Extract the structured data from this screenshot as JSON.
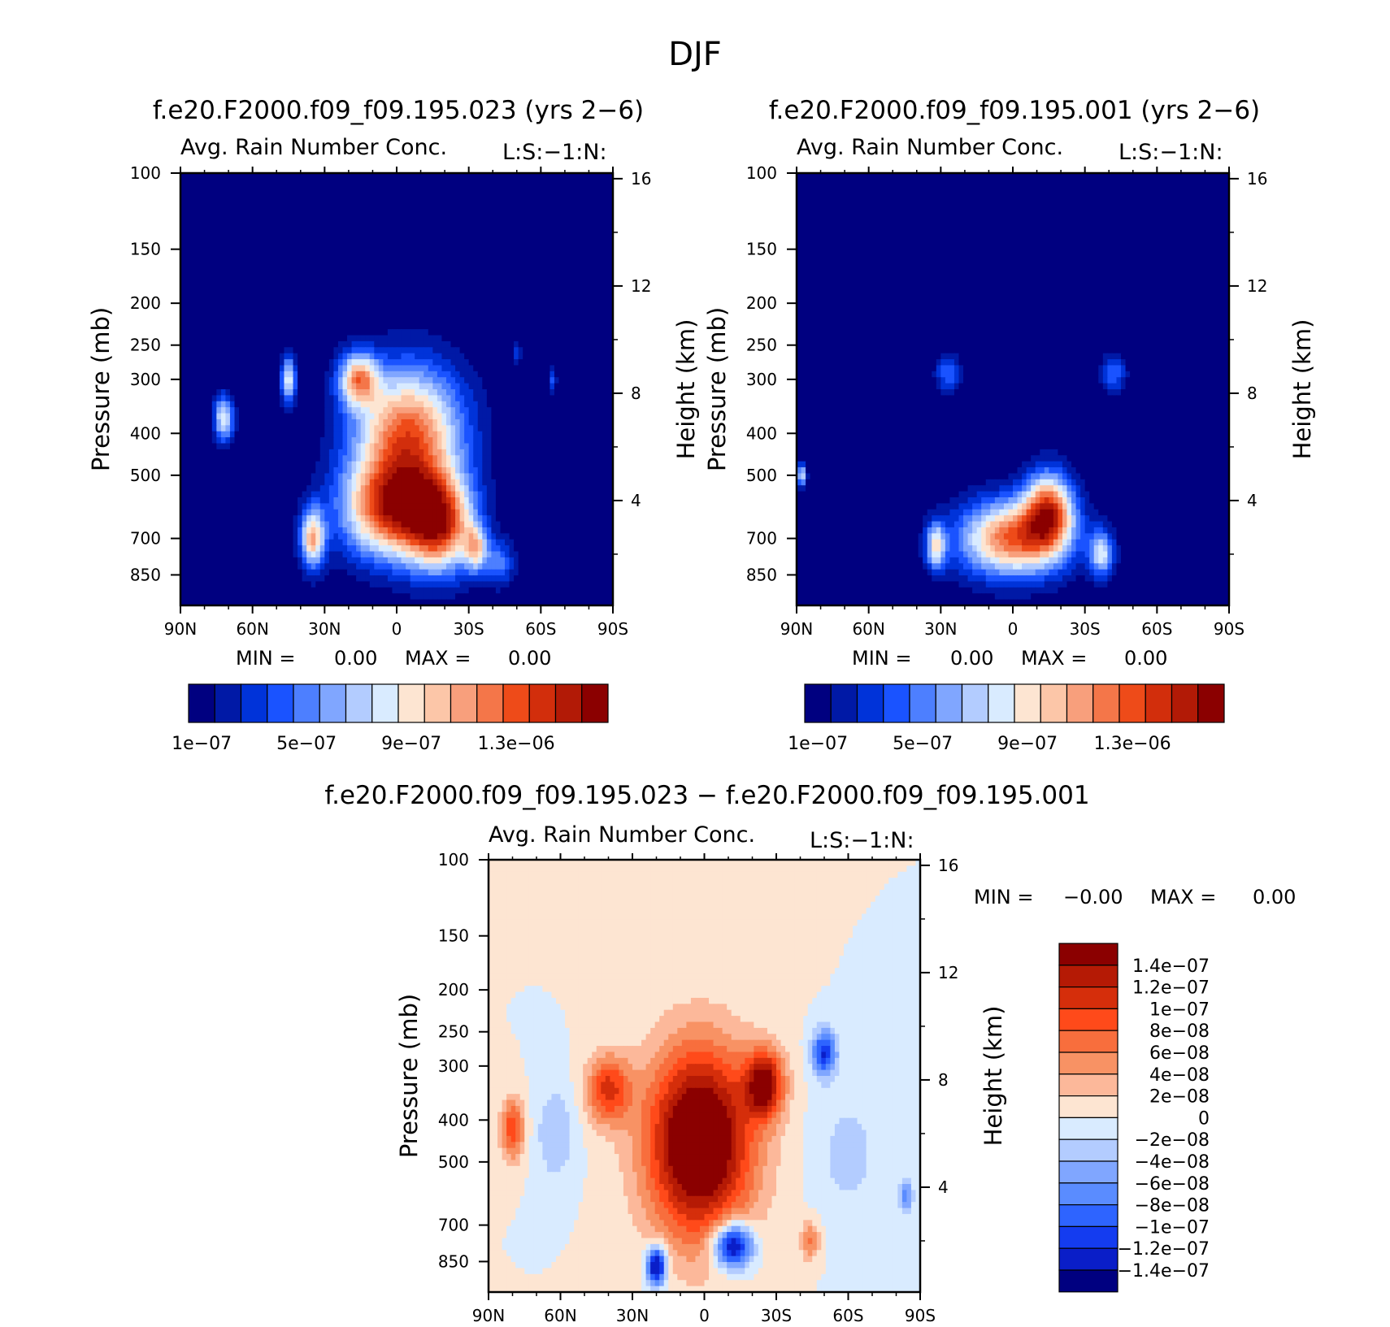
{
  "figure_title": "DJF",
  "colors": {
    "abs_scale": [
      "#000080",
      "#0019a6",
      "#0033d9",
      "#1a53ff",
      "#4d7fff",
      "#80a6ff",
      "#b3ccff",
      "#d9ebff",
      "#fde5d2",
      "#fcc6a8",
      "#f89f7c",
      "#f47649",
      "#ee4b19",
      "#d22e0c",
      "#b21a06",
      "#8b0000"
    ],
    "diff_scale": [
      "#8b0000",
      "#b51a05",
      "#d52e0b",
      "#ff4a1a",
      "#f86e3d",
      "#f89264",
      "#fcb89a",
      "#fde5d2",
      "#d9ebff",
      "#b3ccff",
      "#80a6ff",
      "#5a8cff",
      "#2e64ff",
      "#143cf0",
      "#0a1ec8",
      "#000080"
    ],
    "frame": "#000000"
  },
  "panels": [
    {
      "title": "f.e20.F2000.f09_f09.195.023 (yrs 2−6)",
      "subtitle": "Avg. Rain Number Conc.",
      "tag": "L:S:−1:N:",
      "min_label": "MIN =",
      "min_value": "0.00",
      "max_label": "MAX =",
      "max_value": "0.00"
    },
    {
      "title": "f.e20.F2000.f09_f09.195.001 (yrs 2−6)",
      "subtitle": "Avg. Rain Number Conc.",
      "tag": "L:S:−1:N:",
      "min_label": "MIN =",
      "min_value": "0.00",
      "max_label": "MAX =",
      "max_value": "0.00"
    },
    {
      "title": "f.e20.F2000.f09_f09.195.023 − f.e20.F2000.f09_f09.195.001",
      "subtitle": "Avg. Rain Number Conc.",
      "tag": "L:S:−1:N:",
      "min_label": "MIN =",
      "min_value": "−0.00",
      "max_label": "MAX =",
      "max_value": "0.00"
    }
  ],
  "chart_data": [
    {
      "type": "heatmap",
      "title": "f.e20.F2000.f09_f09.195.023 (yrs 2−6)",
      "subtitle": "Avg. Rain Number Conc.",
      "xlabel": "",
      "ylabel": "Pressure (mb)",
      "y2label": "Height (km)",
      "x_ticks": [
        "90N",
        "60N",
        "30N",
        "0",
        "30S",
        "60S",
        "90S"
      ],
      "x_values": [
        90,
        60,
        30,
        0,
        -30,
        -60,
        -90
      ],
      "y_ticks": [
        100,
        150,
        200,
        250,
        300,
        400,
        500,
        700,
        850
      ],
      "y_range_mb": [
        100,
        1000
      ],
      "y2_ticks": [
        16,
        12,
        8,
        4
      ],
      "colorbar_ticks": [
        "1e−07",
        "5e−07",
        "9e−07",
        "1.3e−06"
      ],
      "colorbar_tick_index": [
        0,
        4,
        8,
        12
      ],
      "blobs": [
        {
          "lat": 3,
          "p": 600,
          "w": 20,
          "h": 0.26,
          "v": 1.5
        },
        {
          "lat": -5,
          "p": 400,
          "w": 22,
          "h": 0.35,
          "v": 1.5
        },
        {
          "lat": -18,
          "p": 650,
          "w": 14,
          "h": 0.25,
          "v": 1.5
        },
        {
          "lat": -33,
          "p": 740,
          "w": 5,
          "h": 0.12,
          "v": 0.9
        },
        {
          "lat": -43,
          "p": 800,
          "w": 6,
          "h": 0.12,
          "v": 0.5
        },
        {
          "lat": 35,
          "p": 700,
          "w": 5,
          "h": 0.16,
          "v": 1.2
        },
        {
          "lat": 16,
          "p": 300,
          "w": 8,
          "h": 0.14,
          "v": 1.2
        },
        {
          "lat": 45,
          "p": 300,
          "w": 3,
          "h": 0.12,
          "v": 1.0
        },
        {
          "lat": 72,
          "p": 370,
          "w": 4,
          "h": 0.12,
          "v": 1.0
        },
        {
          "lat": -65,
          "p": 300,
          "w": 1.5,
          "h": 0.07,
          "v": 0.4
        },
        {
          "lat": -50,
          "p": 260,
          "w": 2,
          "h": 0.08,
          "v": 0.3
        }
      ]
    },
    {
      "type": "heatmap",
      "title": "f.e20.F2000.f09_f09.195.001 (yrs 2−6)",
      "subtitle": "Avg. Rain Number Conc.",
      "xlabel": "",
      "ylabel": "Pressure (mb)",
      "y2label": "Height (km)",
      "x_ticks": [
        "90N",
        "60N",
        "30N",
        "0",
        "30S",
        "60S",
        "90S"
      ],
      "x_values": [
        90,
        60,
        30,
        0,
        -30,
        -60,
        -90
      ],
      "y_ticks": [
        100,
        150,
        200,
        250,
        300,
        400,
        500,
        700,
        850
      ],
      "y_range_mb": [
        100,
        1000
      ],
      "y2_ticks": [
        16,
        12,
        8,
        4
      ],
      "colorbar_ticks": [
        "1e−07",
        "5e−07",
        "9e−07",
        "1.3e−06"
      ],
      "colorbar_tick_index": [
        0,
        4,
        8,
        12
      ],
      "blobs": [
        {
          "lat": 0,
          "p": 700,
          "w": 22,
          "h": 0.2,
          "v": 1.5
        },
        {
          "lat": -15,
          "p": 600,
          "w": 10,
          "h": 0.2,
          "v": 1.4
        },
        {
          "lat": -37,
          "p": 760,
          "w": 5,
          "h": 0.12,
          "v": 0.9
        },
        {
          "lat": 32,
          "p": 730,
          "w": 4,
          "h": 0.12,
          "v": 1.0
        },
        {
          "lat": 27,
          "p": 290,
          "w": 5,
          "h": 0.1,
          "v": 0.5
        },
        {
          "lat": -42,
          "p": 290,
          "w": 5,
          "h": 0.1,
          "v": 0.5
        },
        {
          "lat": 88,
          "p": 500,
          "w": 2,
          "h": 0.06,
          "v": 0.9
        }
      ]
    },
    {
      "type": "heatmap",
      "title": "f.e20.F2000.f09_f09.195.023 − f.e20.F2000.f09_f09.195.001",
      "subtitle": "Avg. Rain Number Conc.",
      "xlabel": "",
      "ylabel": "Pressure (mb)",
      "y2label": "Height (km)",
      "x_ticks": [
        "90N",
        "60N",
        "30N",
        "0",
        "30S",
        "60S",
        "90S"
      ],
      "x_values": [
        90,
        60,
        30,
        0,
        -30,
        -60,
        -90
      ],
      "y_ticks": [
        100,
        150,
        200,
        250,
        300,
        400,
        500,
        700,
        850
      ],
      "y_range_mb": [
        100,
        1000
      ],
      "y2_ticks": [
        16,
        12,
        8,
        4
      ],
      "colorbar_ticks": [
        "1.4e−07",
        "1.2e−07",
        "1e−07",
        "8e−08",
        "6e−08",
        "4e−08",
        "2e−08",
        "0",
        "−2e−08",
        "−4e−08",
        "−6e−08",
        "−8e−08",
        "−1e−07",
        "−1.2e−07",
        "−1.4e−07"
      ],
      "blobs": [
        {
          "lat": 2,
          "p": 450,
          "w": 22,
          "h": 0.5,
          "v": 2.5
        },
        {
          "lat": -25,
          "p": 330,
          "w": 8,
          "h": 0.18,
          "v": 1.8
        },
        {
          "lat": 40,
          "p": 340,
          "w": 9,
          "h": 0.18,
          "v": 1.3
        },
        {
          "lat": 80,
          "p": 420,
          "w": 5,
          "h": 0.16,
          "v": 1.2
        },
        {
          "lat": -12,
          "p": 780,
          "w": 8,
          "h": 0.12,
          "v": -2.2
        },
        {
          "lat": 20,
          "p": 870,
          "w": 4,
          "h": 0.1,
          "v": -2.2
        },
        {
          "lat": -50,
          "p": 280,
          "w": 5,
          "h": 0.12,
          "v": -1.5
        },
        {
          "lat": -44,
          "p": 760,
          "w": 4,
          "h": 0.1,
          "v": 0.8
        },
        {
          "lat": 62,
          "p": 430,
          "w": 8,
          "h": 0.25,
          "v": -0.5
        },
        {
          "lat": -60,
          "p": 480,
          "w": 14,
          "h": 0.35,
          "v": -0.35
        },
        {
          "lat": -84,
          "p": 600,
          "w": 3,
          "h": 0.1,
          "v": -0.8
        }
      ]
    }
  ]
}
